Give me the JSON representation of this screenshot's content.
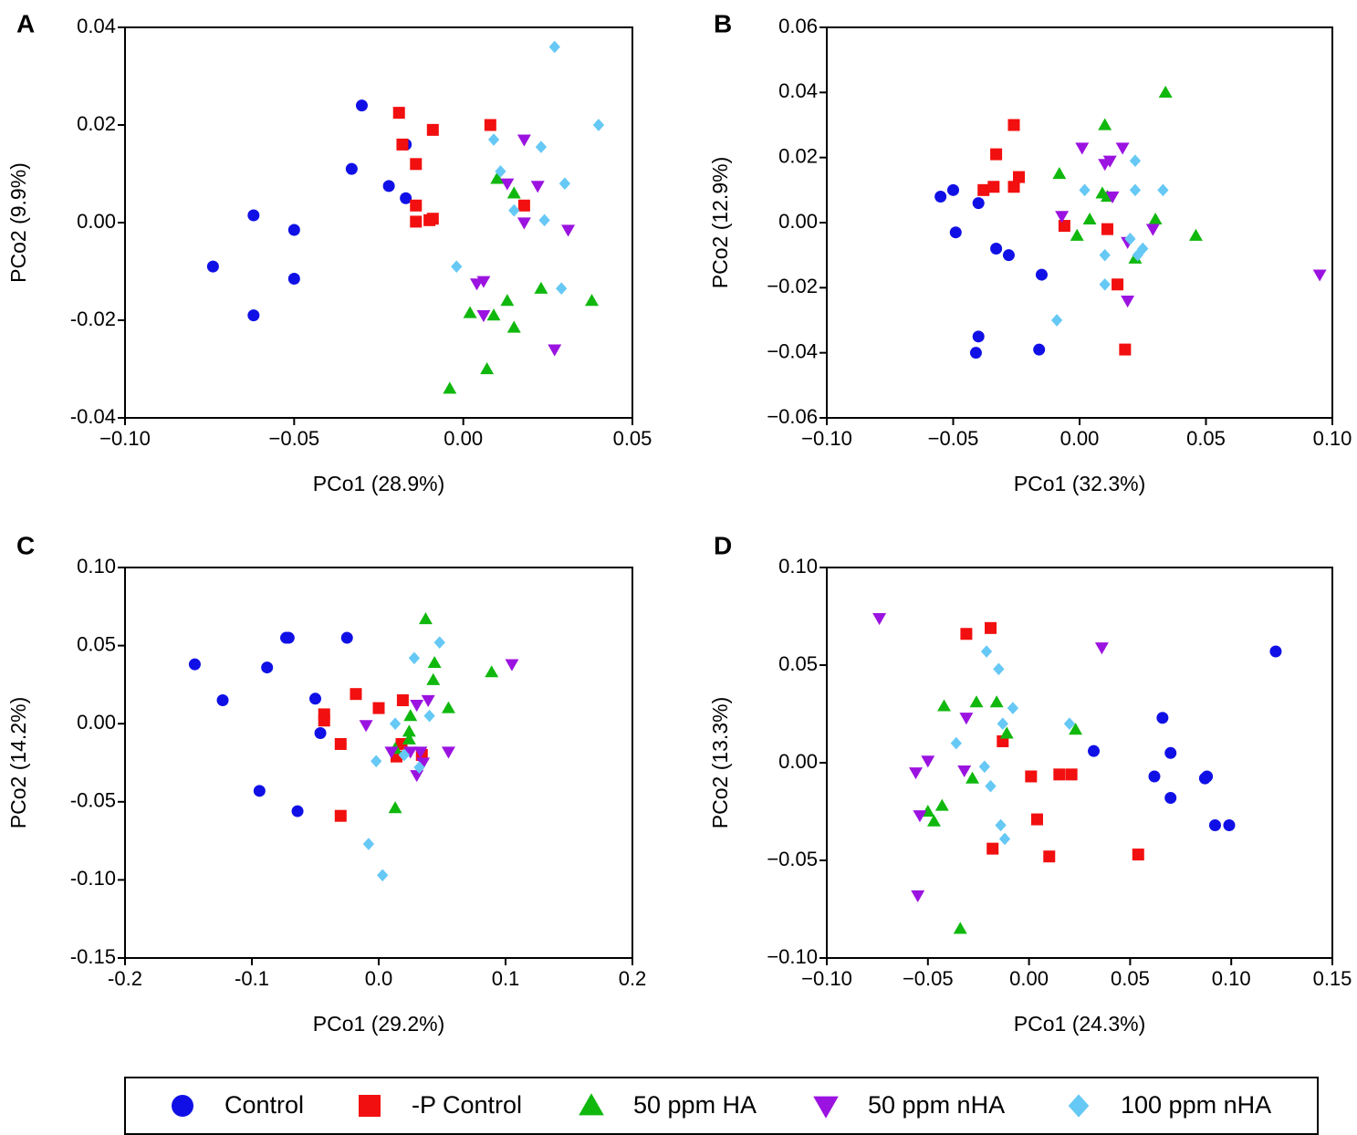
{
  "legend": {
    "items": [
      {
        "key": "control",
        "label": "Control",
        "marker": "circle",
        "color": "#1010e6"
      },
      {
        "key": "pcontrol",
        "label": "-P Control",
        "marker": "square",
        "color": "#f20f0f"
      },
      {
        "key": "ha50",
        "label": "50 ppm HA",
        "marker": "triangle-up",
        "color": "#10b80e"
      },
      {
        "key": "nha50",
        "label": "50 ppm nHA",
        "marker": "triangle-down",
        "color": "#9b13e0"
      },
      {
        "key": "nha100",
        "label": "100 ppm nHA",
        "marker": "diamond",
        "color": "#66c8f5"
      }
    ]
  },
  "chart_data": [
    {
      "panel": "A",
      "type": "scatter",
      "title": "",
      "xlabel": "PCo1 (28.9%)",
      "ylabel": "PCo2 (9.9%)",
      "xlim": [
        -0.1,
        0.05
      ],
      "ylim": [
        -0.04,
        0.04
      ],
      "xticks": [
        "−0.10",
        "−0.05",
        "0.00",
        "0.05"
      ],
      "xtick_values": [
        -0.1,
        -0.05,
        0.0,
        0.05
      ],
      "yticks": [
        "0.04",
        "0.02",
        "0.00",
        "-0.02",
        "-0.04"
      ],
      "ytick_values": [
        0.04,
        0.02,
        0.0,
        -0.02,
        -0.04
      ],
      "grid": false,
      "series": [
        {
          "name": "Control",
          "x": [
            -0.03,
            -0.017,
            -0.033,
            -0.022,
            -0.017,
            -0.062,
            -0.05,
            -0.074,
            -0.05,
            -0.062
          ],
          "y": [
            0.024,
            0.016,
            0.011,
            0.0075,
            0.005,
            0.0015,
            -0.0015,
            -0.009,
            -0.0115,
            -0.019
          ]
        },
        {
          "name": "-P Control",
          "x": [
            -0.019,
            -0.009,
            -0.018,
            -0.014,
            -0.014,
            -0.014,
            -0.01,
            -0.009,
            0.008,
            0.018
          ],
          "y": [
            0.0225,
            0.019,
            0.016,
            0.012,
            0.0035,
            0.0002,
            0.0005,
            0.0008,
            0.02,
            0.0035
          ]
        },
        {
          "name": "50 ppm HA",
          "x": [
            0.01,
            0.015,
            0.002,
            0.013,
            0.009,
            0.015,
            0.023,
            0.038,
            0.007,
            -0.004
          ],
          "y": [
            0.009,
            0.006,
            -0.0185,
            -0.016,
            -0.019,
            -0.0215,
            -0.0135,
            -0.016,
            -0.03,
            -0.034
          ]
        },
        {
          "name": "50 ppm nHA",
          "x": [
            0.018,
            0.013,
            0.022,
            0.018,
            0.031,
            0.006,
            0.004,
            0.006,
            0.027
          ],
          "y": [
            0.017,
            0.008,
            0.0075,
            0.0,
            -0.0015,
            -0.012,
            -0.0125,
            -0.019,
            -0.026
          ]
        },
        {
          "name": "100 ppm nHA",
          "x": [
            0.027,
            0.04,
            0.009,
            0.023,
            0.011,
            0.03,
            0.015,
            0.024,
            -0.002,
            0.029
          ],
          "y": [
            0.036,
            0.02,
            0.017,
            0.0155,
            0.0105,
            0.008,
            0.0025,
            0.0005,
            -0.009,
            -0.0135
          ]
        }
      ]
    },
    {
      "panel": "B",
      "type": "scatter",
      "title": "",
      "xlabel": "PCo1 (32.3%)",
      "ylabel": "PCo2 (12.9%)",
      "xlim": [
        -0.1,
        0.1
      ],
      "ylim": [
        -0.06,
        0.06
      ],
      "xticks": [
        "−0.10",
        "−0.05",
        "0.00",
        "0.05",
        "0.10"
      ],
      "xtick_values": [
        -0.1,
        -0.05,
        0.0,
        0.05,
        0.1
      ],
      "yticks": [
        "0.06",
        "0.04",
        "0.02",
        "0.00",
        "−0.02",
        "−0.04",
        "−0.06"
      ],
      "ytick_values": [
        0.06,
        0.04,
        0.02,
        0.0,
        -0.02,
        -0.04,
        -0.06
      ],
      "grid": false,
      "series": [
        {
          "name": "Control",
          "x": [
            -0.055,
            -0.05,
            -0.04,
            -0.049,
            -0.033,
            -0.028,
            -0.015,
            -0.04,
            -0.041,
            -0.016
          ],
          "y": [
            0.008,
            0.01,
            0.006,
            -0.003,
            -0.008,
            -0.01,
            -0.016,
            -0.035,
            -0.04,
            -0.039
          ]
        },
        {
          "name": "-P Control",
          "x": [
            -0.026,
            -0.033,
            -0.038,
            -0.034,
            -0.026,
            -0.024,
            -0.006,
            0.011,
            0.015,
            0.018
          ],
          "y": [
            0.03,
            0.021,
            0.01,
            0.011,
            0.011,
            0.014,
            -0.001,
            -0.002,
            -0.019,
            -0.039
          ]
        },
        {
          "name": "50 ppm HA",
          "x": [
            0.034,
            0.01,
            -0.008,
            0.009,
            0.011,
            0.004,
            -0.001,
            0.022,
            0.03,
            0.046
          ],
          "y": [
            0.04,
            0.03,
            0.015,
            0.009,
            0.008,
            0.001,
            -0.004,
            -0.011,
            0.001,
            -0.004
          ]
        },
        {
          "name": "50 ppm nHA",
          "x": [
            0.001,
            0.017,
            0.01,
            0.012,
            0.013,
            -0.007,
            0.019,
            0.029,
            0.019,
            0.095
          ],
          "y": [
            0.023,
            0.023,
            0.018,
            0.019,
            0.008,
            0.002,
            -0.006,
            -0.002,
            -0.024,
            -0.016
          ]
        },
        {
          "name": "100 ppm nHA",
          "x": [
            0.022,
            0.002,
            0.022,
            0.033,
            0.02,
            0.023,
            0.01,
            0.01,
            -0.009,
            0.025
          ],
          "y": [
            0.019,
            0.01,
            0.01,
            0.01,
            -0.005,
            -0.01,
            -0.01,
            -0.019,
            -0.03,
            -0.008
          ]
        }
      ]
    },
    {
      "panel": "C",
      "type": "scatter",
      "title": "",
      "xlabel": "PCo1 (29.2%)",
      "ylabel": "PCo2 (14.2%)",
      "xlim": [
        -0.2,
        0.2
      ],
      "ylim": [
        -0.15,
        0.1
      ],
      "xticks": [
        "-0.2",
        "-0.1",
        "0.0",
        "0.1",
        "0.2"
      ],
      "xtick_values": [
        -0.2,
        -0.1,
        0.0,
        0.1,
        0.2
      ],
      "yticks": [
        "0.10",
        "0.05",
        "0.00",
        "-0.05",
        "-0.10",
        "-0.15"
      ],
      "ytick_values": [
        0.1,
        0.05,
        0.0,
        -0.05,
        -0.1,
        -0.15
      ],
      "grid": false,
      "series": [
        {
          "name": "Control",
          "x": [
            -0.145,
            -0.073,
            -0.071,
            -0.025,
            -0.088,
            -0.123,
            -0.05,
            -0.046,
            -0.094,
            -0.064
          ],
          "y": [
            0.038,
            0.055,
            0.055,
            0.055,
            0.036,
            0.015,
            0.016,
            -0.006,
            -0.043,
            -0.056
          ]
        },
        {
          "name": "-P Control",
          "x": [
            -0.018,
            -0.043,
            -0.043,
            0.0,
            0.019,
            -0.03,
            0.018,
            0.014,
            0.034,
            -0.03
          ],
          "y": [
            0.019,
            0.006,
            0.002,
            0.01,
            0.015,
            -0.013,
            -0.013,
            -0.021,
            -0.02,
            -0.059
          ]
        },
        {
          "name": "50 ppm HA",
          "x": [
            0.037,
            0.044,
            0.043,
            0.025,
            0.055,
            0.024,
            0.024,
            0.013,
            0.089,
            0.013
          ],
          "y": [
            0.067,
            0.039,
            0.028,
            0.005,
            0.01,
            -0.005,
            -0.01,
            -0.016,
            0.033,
            -0.054
          ]
        },
        {
          "name": "50 ppm nHA",
          "x": [
            0.105,
            0.039,
            0.03,
            -0.01,
            0.01,
            0.025,
            0.033,
            0.055,
            0.035,
            0.03
          ],
          "y": [
            0.038,
            0.015,
            0.012,
            -0.001,
            -0.018,
            -0.018,
            -0.018,
            -0.018,
            -0.025,
            -0.033
          ]
        },
        {
          "name": "100 ppm nHA",
          "x": [
            0.048,
            0.028,
            0.04,
            0.013,
            0.02,
            0.02,
            0.032,
            -0.002,
            0.003,
            -0.008
          ],
          "y": [
            0.052,
            0.042,
            0.005,
            0.0,
            -0.02,
            -0.02,
            -0.028,
            -0.024,
            -0.097,
            -0.077
          ]
        }
      ]
    },
    {
      "panel": "D",
      "type": "scatter",
      "title": "",
      "xlabel": "PCo1 (24.3%)",
      "ylabel": "PCo2 (13.3%)",
      "xlim": [
        -0.1,
        0.15
      ],
      "ylim": [
        -0.1,
        0.1
      ],
      "xticks": [
        "−0.10",
        "−0.05",
        "0.00",
        "0.05",
        "0.10",
        "0.15"
      ],
      "xtick_values": [
        -0.1,
        -0.05,
        0.0,
        0.05,
        0.1,
        0.15
      ],
      "yticks": [
        "0.10",
        "0.05",
        "0.00",
        "−0.05",
        "−0.10"
      ],
      "ytick_values": [
        0.1,
        0.05,
        0.0,
        -0.05,
        -0.1
      ],
      "grid": false,
      "series": [
        {
          "name": "Control",
          "x": [
            0.122,
            0.066,
            0.07,
            0.032,
            0.062,
            0.087,
            0.088,
            0.07,
            0.092,
            0.099
          ],
          "y": [
            0.057,
            0.023,
            0.005,
            0.006,
            -0.007,
            -0.008,
            -0.007,
            -0.018,
            -0.032,
            -0.032
          ]
        },
        {
          "name": "-P Control",
          "x": [
            -0.031,
            -0.019,
            -0.013,
            0.001,
            0.015,
            0.021,
            0.004,
            -0.018,
            0.01,
            0.054
          ],
          "y": [
            0.066,
            0.069,
            0.011,
            -0.007,
            -0.006,
            -0.006,
            -0.029,
            -0.044,
            -0.048,
            -0.047
          ]
        },
        {
          "name": "50 ppm HA",
          "x": [
            -0.042,
            -0.026,
            -0.016,
            -0.011,
            0.023,
            -0.028,
            -0.043,
            -0.047,
            -0.05,
            -0.034
          ],
          "y": [
            0.029,
            0.031,
            0.031,
            0.015,
            0.017,
            -0.008,
            -0.022,
            -0.03,
            -0.025,
            -0.085
          ]
        },
        {
          "name": "50 ppm nHA",
          "x": [
            -0.074,
            0.036,
            -0.031,
            -0.05,
            -0.056,
            -0.032,
            -0.054,
            -0.055
          ],
          "y": [
            0.074,
            0.059,
            0.023,
            0.001,
            -0.005,
            -0.004,
            -0.027,
            -0.068
          ]
        },
        {
          "name": "100 ppm nHA",
          "x": [
            -0.021,
            -0.015,
            -0.008,
            -0.013,
            -0.036,
            0.02,
            -0.022,
            -0.019,
            -0.014,
            -0.012
          ],
          "y": [
            0.057,
            0.048,
            0.028,
            0.02,
            0.01,
            0.02,
            -0.002,
            -0.012,
            -0.032,
            -0.039
          ]
        }
      ]
    }
  ]
}
